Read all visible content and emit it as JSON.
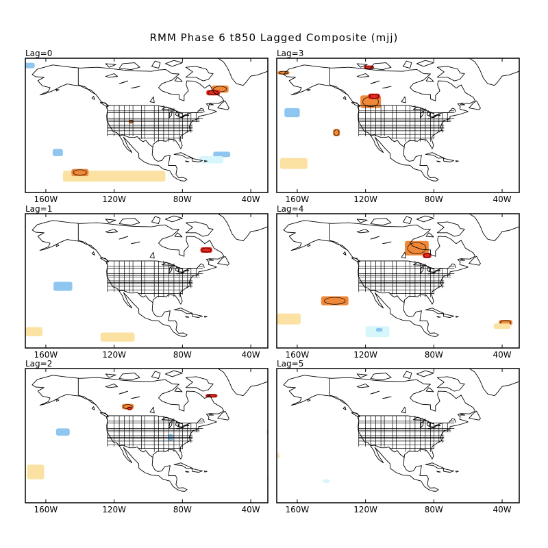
{
  "title": "RMM Phase 6 t850 Lagged Composite (mjj)",
  "lon_ticks": [
    "160W",
    "120W",
    "80W",
    "40W"
  ],
  "colors": {
    "pos_strong": "#e8271d",
    "pos_mid": "#f0883a",
    "pos_weak": "#fbe2a2",
    "neg_mid": "#8ec6f0",
    "neg_weak": "#d6f6fb",
    "coast": "#000000"
  },
  "panels": [
    {
      "label": "Lag=0",
      "col": 0,
      "row": 0,
      "anomalies": [
        {
          "lon": -170,
          "lat": 71,
          "w": 7,
          "h": 3,
          "class": "neg_mid"
        },
        {
          "lon": -153,
          "lat": 23,
          "w": 6,
          "h": 4,
          "class": "neg_mid"
        },
        {
          "lon": -120,
          "lat": 10,
          "w": 60,
          "h": 6,
          "class": "pos_weak"
        },
        {
          "lon": -140,
          "lat": 12,
          "w": 10,
          "h": 4,
          "class": "pos_mid"
        },
        {
          "lon": -57,
          "lat": 22,
          "w": 10,
          "h": 3,
          "class": "neg_mid"
        },
        {
          "lon": -63,
          "lat": 19,
          "w": 14,
          "h": 4,
          "class": "neg_weak"
        },
        {
          "lon": -58,
          "lat": 58,
          "w": 10,
          "h": 4,
          "class": "pos_mid"
        },
        {
          "lon": -62,
          "lat": 56,
          "w": 8,
          "h": 3,
          "class": "pos_strong"
        },
        {
          "lon": -110,
          "lat": 40,
          "w": 3,
          "h": 2,
          "class": "pos_mid"
        }
      ]
    },
    {
      "label": "Lag=3",
      "col": 1,
      "row": 0,
      "anomalies": [
        {
          "lon": -168,
          "lat": 67,
          "w": 7,
          "h": 2,
          "class": "pos_mid"
        },
        {
          "lon": -118,
          "lat": 70,
          "w": 6,
          "h": 2,
          "class": "pos_strong"
        },
        {
          "lon": -163,
          "lat": 45,
          "w": 9,
          "h": 5,
          "class": "neg_mid"
        },
        {
          "lon": -162,
          "lat": 17,
          "w": 16,
          "h": 6,
          "class": "pos_weak"
        },
        {
          "lon": -117,
          "lat": 51,
          "w": 12,
          "h": 7,
          "class": "pos_mid"
        },
        {
          "lon": -115,
          "lat": 54,
          "w": 7,
          "h": 3,
          "class": "pos_strong"
        },
        {
          "lon": -137,
          "lat": 34,
          "w": 4,
          "h": 4,
          "class": "pos_mid"
        }
      ]
    },
    {
      "label": "Lag=1",
      "col": 0,
      "row": 1,
      "anomalies": [
        {
          "lon": -66,
          "lat": 55,
          "w": 7,
          "h": 3,
          "class": "pos_strong"
        },
        {
          "lon": -150,
          "lat": 35,
          "w": 11,
          "h": 5,
          "class": "neg_mid"
        },
        {
          "lon": -167,
          "lat": 10,
          "w": 10,
          "h": 5,
          "class": "pos_weak"
        },
        {
          "lon": -118,
          "lat": 7,
          "w": 20,
          "h": 5,
          "class": "pos_weak"
        }
      ]
    },
    {
      "label": "Lag=4",
      "col": 1,
      "row": 1,
      "anomalies": [
        {
          "lon": -90,
          "lat": 56,
          "w": 14,
          "h": 8,
          "class": "pos_mid"
        },
        {
          "lon": -84,
          "lat": 52,
          "w": 5,
          "h": 3,
          "class": "pos_strong"
        },
        {
          "lon": -138,
          "lat": 27,
          "w": 16,
          "h": 5,
          "class": "pos_mid"
        },
        {
          "lon": -165,
          "lat": 17,
          "w": 14,
          "h": 6,
          "class": "pos_weak"
        },
        {
          "lon": -113,
          "lat": 10,
          "w": 14,
          "h": 6,
          "class": "neg_weak"
        },
        {
          "lon": -112,
          "lat": 11,
          "w": 4,
          "h": 2,
          "class": "neg_mid"
        },
        {
          "lon": -38,
          "lat": 15,
          "w": 8,
          "h": 3,
          "class": "pos_mid"
        },
        {
          "lon": -40,
          "lat": 13,
          "w": 10,
          "h": 3,
          "class": "pos_weak"
        }
      ]
    },
    {
      "label": "Lag=2",
      "col": 0,
      "row": 2,
      "anomalies": [
        {
          "lon": -112,
          "lat": 54,
          "w": 7,
          "h": 3,
          "class": "pos_mid"
        },
        {
          "lon": -111,
          "lat": 53,
          "w": 3,
          "h": 2,
          "class": "pos_strong"
        },
        {
          "lon": -63,
          "lat": 60,
          "w": 7,
          "h": 2,
          "class": "pos_strong"
        },
        {
          "lon": -150,
          "lat": 40,
          "w": 8,
          "h": 4,
          "class": "neg_mid"
        },
        {
          "lon": -87,
          "lat": 37,
          "w": 3,
          "h": 4,
          "class": "neg_mid"
        },
        {
          "lon": -166,
          "lat": 18,
          "w": 10,
          "h": 8,
          "class": "pos_weak"
        },
        {
          "lon": -30,
          "lat": 40,
          "w": 1,
          "h": 3,
          "class": "neg_mid"
        },
        {
          "lon": -30,
          "lat": 14,
          "w": 1,
          "h": 3,
          "class": "pos_weak"
        }
      ]
    },
    {
      "label": "Lag=5",
      "col": 1,
      "row": 2,
      "anomalies": [
        {
          "lon": -143,
          "lat": 13,
          "w": 4,
          "h": 2,
          "class": "neg_weak"
        },
        {
          "lon": -171,
          "lat": 27,
          "w": 1,
          "h": 3,
          "class": "pos_weak"
        }
      ]
    }
  ]
}
